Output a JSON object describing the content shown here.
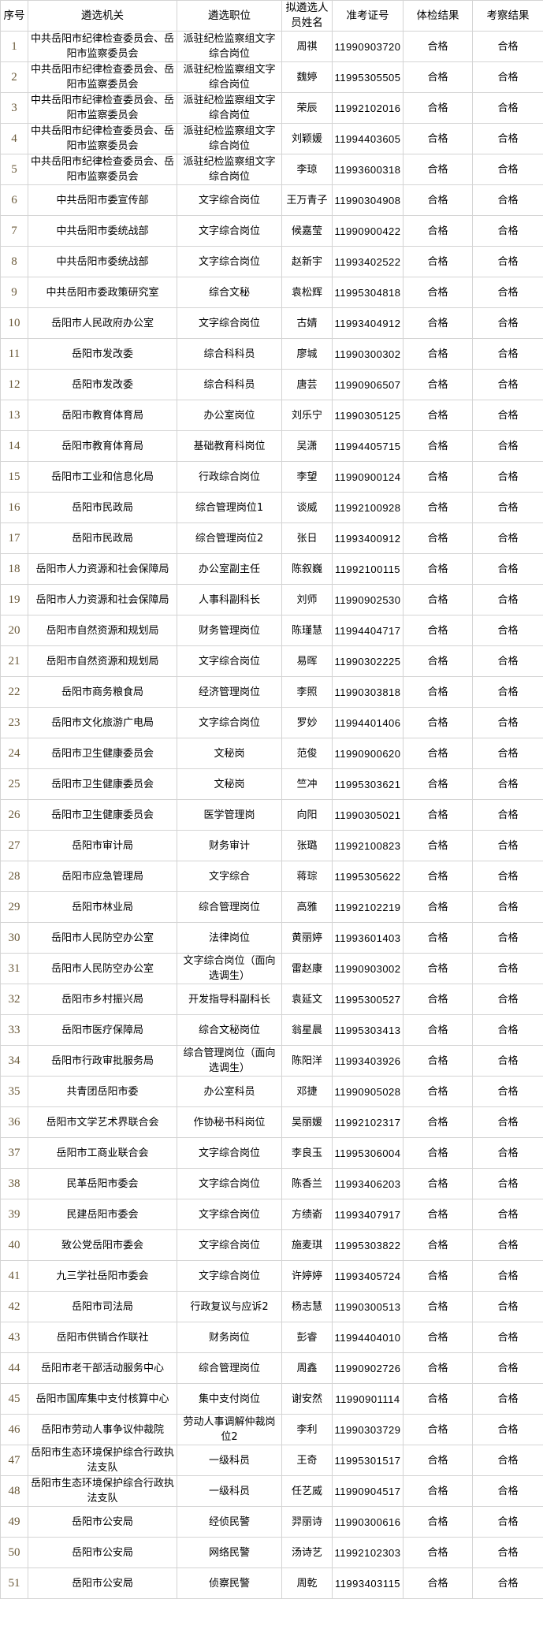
{
  "headers": [
    "序号",
    "遴选机关",
    "遴选职位",
    "拟遴选人员姓名",
    "准考证号",
    "体检结果",
    "考察结果"
  ],
  "rows": [
    [
      "1",
      "中共岳阳市纪律检查委员会、岳阳市监察委员会",
      "派驻纪检监察组文字综合岗位",
      "周祺",
      "11990903720",
      "合格",
      "合格"
    ],
    [
      "2",
      "中共岳阳市纪律检查委员会、岳阳市监察委员会",
      "派驻纪检监察组文字综合岗位",
      "魏婷",
      "11995305505",
      "合格",
      "合格"
    ],
    [
      "3",
      "中共岳阳市纪律检查委员会、岳阳市监察委员会",
      "派驻纪检监察组文字综合岗位",
      "荣辰",
      "11992102016",
      "合格",
      "合格"
    ],
    [
      "4",
      "中共岳阳市纪律检查委员会、岳阳市监察委员会",
      "派驻纪检监察组文字综合岗位",
      "刘颖媛",
      "11994403605",
      "合格",
      "合格"
    ],
    [
      "5",
      "中共岳阳市纪律检查委员会、岳阳市监察委员会",
      "派驻纪检监察组文字综合岗位",
      "李琼",
      "11993600318",
      "合格",
      "合格"
    ],
    [
      "6",
      "中共岳阳市委宣传部",
      "文字综合岗位",
      "王万青子",
      "11990304908",
      "合格",
      "合格"
    ],
    [
      "7",
      "中共岳阳市委统战部",
      "文字综合岗位",
      "候嘉莹",
      "11990900422",
      "合格",
      "合格"
    ],
    [
      "8",
      "中共岳阳市委统战部",
      "文字综合岗位",
      "赵新宇",
      "11993402522",
      "合格",
      "合格"
    ],
    [
      "9",
      "中共岳阳市委政策研究室",
      "综合文秘",
      "袁松辉",
      "11995304818",
      "合格",
      "合格"
    ],
    [
      "10",
      "岳阳市人民政府办公室",
      "文字综合岗位",
      "古婧",
      "11993404912",
      "合格",
      "合格"
    ],
    [
      "11",
      "岳阳市发改委",
      "综合科科员",
      "廖城",
      "11990300302",
      "合格",
      "合格"
    ],
    [
      "12",
      "岳阳市发改委",
      "综合科科员",
      "唐芸",
      "11990906507",
      "合格",
      "合格"
    ],
    [
      "13",
      "岳阳市教育体育局",
      "办公室岗位",
      "刘乐宁",
      "11990305125",
      "合格",
      "合格"
    ],
    [
      "14",
      "岳阳市教育体育局",
      "基础教育科岗位",
      "吴潇",
      "11994405715",
      "合格",
      "合格"
    ],
    [
      "15",
      "岳阳市工业和信息化局",
      "行政综合岗位",
      "李望",
      "11990900124",
      "合格",
      "合格"
    ],
    [
      "16",
      "岳阳市民政局",
      "综合管理岗位1",
      "谈威",
      "11992100928",
      "合格",
      "合格"
    ],
    [
      "17",
      "岳阳市民政局",
      "综合管理岗位2",
      "张日",
      "11993400912",
      "合格",
      "合格"
    ],
    [
      "18",
      "岳阳市人力资源和社会保障局",
      "办公室副主任",
      "陈叙巍",
      "11992100115",
      "合格",
      "合格"
    ],
    [
      "19",
      "岳阳市人力资源和社会保障局",
      "人事科副科长",
      "刘师",
      "11990902530",
      "合格",
      "合格"
    ],
    [
      "20",
      "岳阳市自然资源和规划局",
      "财务管理岗位",
      "陈瑾慧",
      "11994404717",
      "合格",
      "合格"
    ],
    [
      "21",
      "岳阳市自然资源和规划局",
      "文字综合岗位",
      "易晖",
      "11990302225",
      "合格",
      "合格"
    ],
    [
      "22",
      "岳阳市商务粮食局",
      "经济管理岗位",
      "李照",
      "11990303818",
      "合格",
      "合格"
    ],
    [
      "23",
      "岳阳市文化旅游广电局",
      "文字综合岗位",
      "罗妙",
      "11994401406",
      "合格",
      "合格"
    ],
    [
      "24",
      "岳阳市卫生健康委员会",
      "文秘岗",
      "范俊",
      "11990900620",
      "合格",
      "合格"
    ],
    [
      "25",
      "岳阳市卫生健康委员会",
      "文秘岗",
      "竺冲",
      "11995303621",
      "合格",
      "合格"
    ],
    [
      "26",
      "岳阳市卫生健康委员会",
      "医学管理岗",
      "向阳",
      "11990305021",
      "合格",
      "合格"
    ],
    [
      "27",
      "岳阳市审计局",
      "财务审计",
      "张璐",
      "11992100823",
      "合格",
      "合格"
    ],
    [
      "28",
      "岳阳市应急管理局",
      "文字综合",
      "蒋琮",
      "11995305622",
      "合格",
      "合格"
    ],
    [
      "29",
      "岳阳市林业局",
      "综合管理岗位",
      "高雅",
      "11992102219",
      "合格",
      "合格"
    ],
    [
      "30",
      "岳阳市人民防空办公室",
      "法律岗位",
      "黄丽婷",
      "11993601403",
      "合格",
      "合格"
    ],
    [
      "31",
      "岳阳市人民防空办公室",
      "文字综合岗位（面向选调生）",
      "雷赵康",
      "11990903002",
      "合格",
      "合格"
    ],
    [
      "32",
      "岳阳市乡村振兴局",
      "开发指导科副科长",
      "袁延文",
      "11995300527",
      "合格",
      "合格"
    ],
    [
      "33",
      "岳阳市医疗保障局",
      "综合文秘岗位",
      "翁星晨",
      "11995303413",
      "合格",
      "合格"
    ],
    [
      "34",
      "岳阳市行政审批服务局",
      "综合管理岗位（面向选调生）",
      "陈阳洋",
      "11993403926",
      "合格",
      "合格"
    ],
    [
      "35",
      "共青团岳阳市委",
      "办公室科员",
      "邓捷",
      "11990905028",
      "合格",
      "合格"
    ],
    [
      "36",
      "岳阳市文学艺术界联合会",
      "作协秘书科岗位",
      "吴丽媛",
      "11992102317",
      "合格",
      "合格"
    ],
    [
      "37",
      "岳阳市工商业联合会",
      "文字综合岗位",
      "李良玉",
      "11995306004",
      "合格",
      "合格"
    ],
    [
      "38",
      "民革岳阳市委会",
      "文字综合岗位",
      "陈香兰",
      "11993406203",
      "合格",
      "合格"
    ],
    [
      "39",
      "民建岳阳市委会",
      "文字综合岗位",
      "方绩嵛",
      "11993407917",
      "合格",
      "合格"
    ],
    [
      "40",
      "致公党岳阳市委会",
      "文字综合岗位",
      "施麦琪",
      "11995303822",
      "合格",
      "合格"
    ],
    [
      "41",
      "九三学社岳阳市委会",
      "文字综合岗位",
      "许婷婷",
      "11993405724",
      "合格",
      "合格"
    ],
    [
      "42",
      "岳阳市司法局",
      "行政复议与应诉2",
      "杨志慧",
      "11990300513",
      "合格",
      "合格"
    ],
    [
      "43",
      "岳阳市供销合作联社",
      "财务岗位",
      "彭睿",
      "11994404010",
      "合格",
      "合格"
    ],
    [
      "44",
      "岳阳市老干部活动服务中心",
      "综合管理岗位",
      "周鑫",
      "11990902726",
      "合格",
      "合格"
    ],
    [
      "45",
      "岳阳市国库集中支付核算中心",
      "集中支付岗位",
      "谢安然",
      "11990901114",
      "合格",
      "合格"
    ],
    [
      "46",
      "岳阳市劳动人事争议仲裁院",
      "劳动人事调解仲裁岗位2",
      "李利",
      "11990303729",
      "合格",
      "合格"
    ],
    [
      "47",
      "岳阳市生态环境保护综合行政执法支队",
      "一级科员",
      "王奇",
      "11995301517",
      "合格",
      "合格"
    ],
    [
      "48",
      "岳阳市生态环境保护综合行政执法支队",
      "一级科员",
      "任艺威",
      "11990904517",
      "合格",
      "合格"
    ],
    [
      "49",
      "岳阳市公安局",
      "经侦民警",
      "羿丽诗",
      "11990300616",
      "合格",
      "合格"
    ],
    [
      "50",
      "岳阳市公安局",
      "网络民警",
      "汤诗艺",
      "11992102303",
      "合格",
      "合格"
    ],
    [
      "51",
      "岳阳市公安局",
      "侦察民警",
      "周乾",
      "11993403115",
      "合格",
      "合格"
    ]
  ]
}
